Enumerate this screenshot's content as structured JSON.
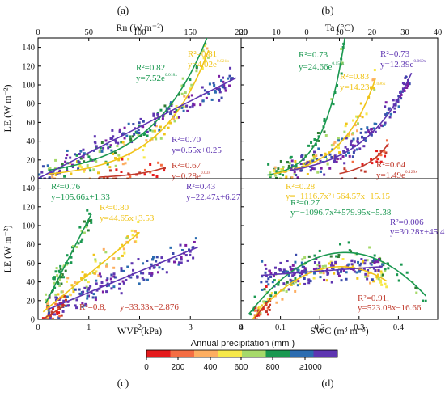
{
  "figure": {
    "panel_labels": [
      "(a)",
      "(b)",
      "(c)",
      "(d)"
    ],
    "colorbar": {
      "title": "Annual precipitation (mm )",
      "ticks": [
        "0",
        "200",
        "400",
        "600",
        "800",
        "≥1000"
      ],
      "colors": [
        "#e41a1c",
        "#f46d43",
        "#fdae61",
        "#f6e84a",
        "#a6d96a",
        "#1a9850",
        "#2b6cb0",
        "#5e35b1"
      ]
    }
  },
  "chart_data": [
    {
      "panel": "(a)",
      "type": "scatter",
      "xlabel": "Rn (W m⁻²)",
      "ylabel": "LE (W m⁻²)",
      "xlim": [
        0,
        200
      ],
      "ylim": [
        0,
        150
      ],
      "xticks": [
        "0",
        "50",
        "100",
        "150",
        "200"
      ],
      "yticks": [
        "0",
        "20",
        "40",
        "60",
        "80",
        "100",
        "120",
        "140"
      ],
      "fits": [
        {
          "color": "#1a9850",
          "type": "exp",
          "a": 7.52,
          "b": 0.018,
          "xrange": [
            10,
            175
          ],
          "r2_label": "R²=0.82",
          "eq_label": "y=7.52e",
          "exp_label": "0.018x"
        },
        {
          "color": "#f0c419",
          "type": "exp",
          "a": 4.02,
          "b": 0.021,
          "xrange": [
            10,
            168
          ],
          "r2_label": "R²=0.81",
          "eq_label": "y=4.02e",
          "exp_label": "0.021x"
        },
        {
          "color": "#5e35b1",
          "type": "linear",
          "a": 0.55,
          "b": 0.25,
          "xrange": [
            0,
            195
          ],
          "r2_label": "R²=0.70",
          "eq_label": "y=0.55x+0.25"
        },
        {
          "color": "#c0392b",
          "type": "exp",
          "a": 0.28,
          "b": 0.03,
          "xrange": [
            60,
            125
          ],
          "r2_label": "R²=0.67",
          "eq_label": "y=0.28e",
          "exp_label": "0.03x"
        }
      ]
    },
    {
      "panel": "(b)",
      "type": "scatter",
      "xlabel": "Ta (°C)",
      "ylabel": "",
      "xlim": [
        -20,
        40
      ],
      "ylim": [
        0,
        150
      ],
      "xticks": [
        "−20",
        "−10",
        "0",
        "10",
        "20",
        "30",
        "40"
      ],
      "yticks": [],
      "fits": [
        {
          "color": "#1a9850",
          "type": "exp",
          "a": 24.66,
          "b": 0.155,
          "xrange": [
            -12,
            12
          ],
          "r2_label": "R²=0.73",
          "eq_label": "y=24.66e",
          "exp_label": "0.155x"
        },
        {
          "color": "#f0c419",
          "type": "exp",
          "a": 14.23,
          "b": 0.096,
          "xrange": [
            -10,
            21
          ],
          "r2_label": "R²=0.83",
          "eq_label": "y=14.23e",
          "exp_label": "0.096x"
        },
        {
          "color": "#5e35b1",
          "type": "exp",
          "a": 12.39,
          "b": 0.069,
          "xrange": [
            -5,
            32
          ],
          "r2_label": "R²=0.73",
          "eq_label": "y=12.39e",
          "exp_label": "0.069x"
        },
        {
          "color": "#c0392b",
          "type": "exp",
          "a": 1.49,
          "b": 0.129,
          "xrange": [
            10,
            25
          ],
          "r2_label": "R²=0.64",
          "eq_label": "y=1.49e",
          "exp_label": "0.129x"
        }
      ]
    },
    {
      "panel": "(c)",
      "type": "scatter",
      "xlabel": "WVP (kPa)",
      "ylabel": "LE (W m⁻²)",
      "xlim": [
        0,
        4
      ],
      "ylim": [
        0,
        150
      ],
      "xticks": [
        "0",
        "1",
        "2",
        "3",
        "4"
      ],
      "yticks": [
        "0",
        "20",
        "40",
        "60",
        "80",
        "100",
        "120",
        "140"
      ],
      "fits": [
        {
          "color": "#1a9850",
          "type": "linear",
          "a": 105.66,
          "b": 1.33,
          "xrange": [
            0.15,
            1.05
          ],
          "r2_label": "R²=0.76",
          "eq_label": "y=105.66x+1.33"
        },
        {
          "color": "#f0c419",
          "type": "linear",
          "a": 44.65,
          "b": 3.53,
          "xrange": [
            0.1,
            2.0
          ],
          "r2_label": "R²=0.80",
          "eq_label": "y=44.65x+3.53"
        },
        {
          "color": "#5e35b1",
          "type": "linear",
          "a": 22.47,
          "b": 6.27,
          "xrange": [
            0.2,
            3.15
          ],
          "r2_label": "R²=0.43",
          "eq_label": "y=22.47x+6.27"
        },
        {
          "color": "#c0392b",
          "type": "linear",
          "a": 33.33,
          "b": -2.876,
          "xrange": [
            0.1,
            0.55
          ],
          "r2_label": "R²=0.8,",
          "eq_label": "y=33.33x−2.876"
        }
      ]
    },
    {
      "panel": "(d)",
      "type": "scatter",
      "xlabel": "SWC (m³ m⁻³)",
      "ylabel": "",
      "xlim": [
        0,
        0.5
      ],
      "ylim": [
        0,
        150
      ],
      "xticks": [
        "0",
        "0.1",
        "0.2",
        "0.3",
        "0.4"
      ],
      "yticks": [],
      "fits": [
        {
          "color": "#f0c419",
          "type": "quad",
          "a": -1116.7,
          "b": 564.57,
          "c": -15.15,
          "xrange": [
            0.03,
            0.37
          ],
          "r2_label": "R²=0.28",
          "eq_label": "y=−1116.7x²+564.57x−15.15"
        },
        {
          "color": "#1a9850",
          "type": "quad",
          "a": -1096.7,
          "b": 579.95,
          "c": -5.38,
          "xrange": [
            0.02,
            0.47
          ],
          "r2_label": "R²=0.27",
          "eq_label": "y=−1096.7x²+579.95x−5.38"
        },
        {
          "color": "#5e35b1",
          "type": "linear",
          "a": 30.28,
          "b": 45.4,
          "xrange": [
            0.05,
            0.36
          ],
          "r2_label": "R²=0.006",
          "eq_label": "y=30.28x+45.4"
        },
        {
          "color": "#c0392b",
          "type": "linear",
          "a": 523.08,
          "b": -16.66,
          "xrange": [
            0.035,
            0.075
          ],
          "r2_label": "R²=0.91,",
          "eq_label": "y=523.08x−16.66"
        }
      ]
    }
  ]
}
